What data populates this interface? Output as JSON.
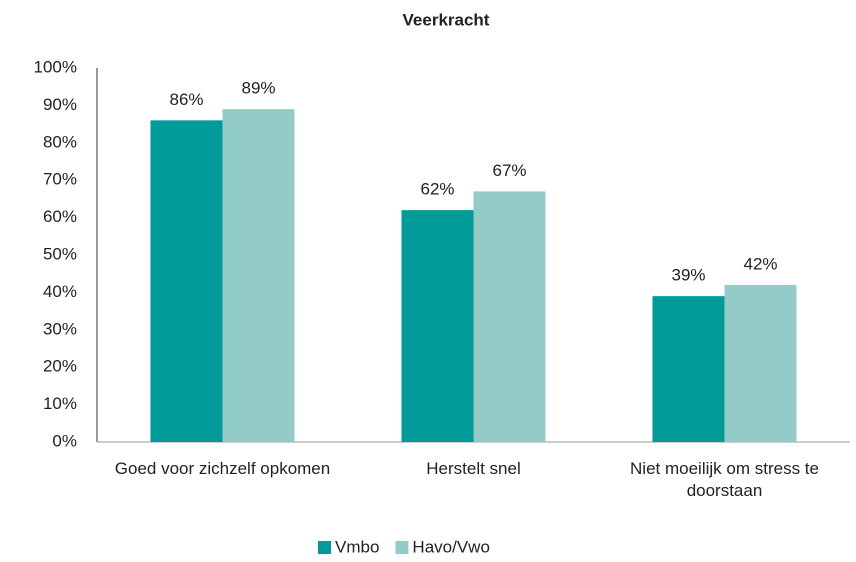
{
  "chart_data": {
    "type": "bar",
    "title": "Veerkracht",
    "categories": [
      "Goed voor zichzelf opkomen",
      "Herstelt snel",
      "Niet moeilijk om stress te doorstaan"
    ],
    "series": [
      {
        "name": "Vmbo",
        "color": "#009a99",
        "values": [
          86,
          62,
          39
        ],
        "value_labels": [
          "86%",
          "62%",
          "39%"
        ]
      },
      {
        "name": "Havo/Vwo",
        "color": "#93cbc9",
        "values": [
          89,
          67,
          42
        ],
        "value_labels": [
          "89%",
          "67%",
          "42%"
        ]
      }
    ],
    "ylim": [
      0,
      100
    ],
    "yticks": [
      {
        "value": 0,
        "label": "0%"
      },
      {
        "value": 10,
        "label": "10%"
      },
      {
        "value": 20,
        "label": "20%"
      },
      {
        "value": 30,
        "label": "30%"
      },
      {
        "value": 40,
        "label": "40%"
      },
      {
        "value": 50,
        "label": "50%"
      },
      {
        "value": 60,
        "label": "60%"
      },
      {
        "value": 70,
        "label": "70%"
      },
      {
        "value": 80,
        "label": "80%"
      },
      {
        "value": 90,
        "label": "90%"
      },
      {
        "value": 100,
        "label": "100%"
      }
    ],
    "grid": false,
    "legend": "bottom"
  }
}
